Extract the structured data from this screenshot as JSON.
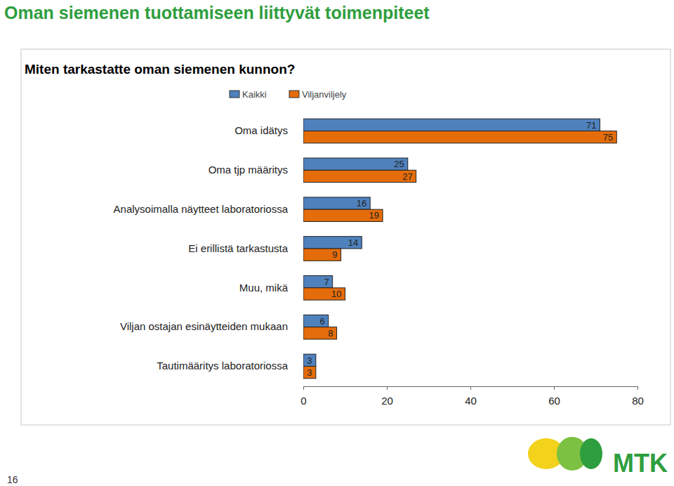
{
  "chart_data": {
    "type": "bar",
    "orientation": "horizontal",
    "title": "Oman siemenen tuottamiseen liittyvät toimenpiteet",
    "subtitle": "Miten tarkastatte oman siemenen kunnon?",
    "categories": [
      "Oma idätys",
      "Oma tjp määritys",
      "Analysoimalla näytteet laboratoriossa",
      "Ei erillistä tarkastusta",
      "Muu, mikä",
      "Viljan ostajan esinäytteiden mukaan",
      "Tautimääritys laboratoriossa"
    ],
    "series": [
      {
        "name": "Kaikki",
        "color": "#4f81bd",
        "values": [
          71,
          25,
          16,
          14,
          7,
          6,
          3
        ]
      },
      {
        "name": "Viljanviljely",
        "color": "#e46c0a",
        "values": [
          75,
          27,
          19,
          9,
          10,
          8,
          3
        ]
      }
    ],
    "xlim": [
      0,
      80
    ],
    "xticks": [
      0,
      20,
      40,
      60,
      80
    ],
    "grid": false,
    "legend": "top",
    "data_labels": true,
    "annotations": [
      "16",
      "MTK"
    ]
  }
}
